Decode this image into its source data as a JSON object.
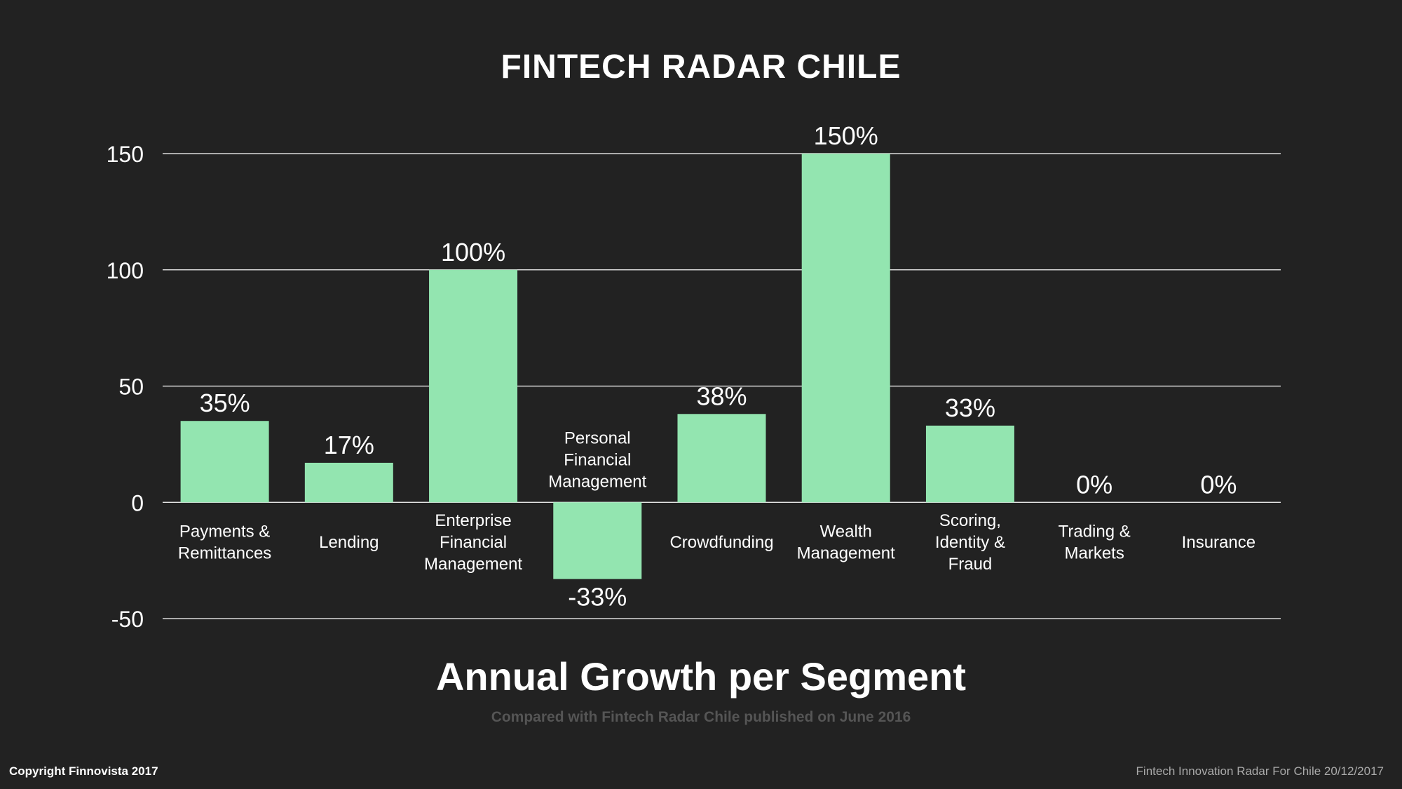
{
  "header": {
    "title": "FINTECH RADAR CHILE"
  },
  "chart_data": {
    "type": "bar",
    "title": "FINTECH RADAR CHILE",
    "subtitle": "Annual Growth per Segment",
    "caption": "Compared with Fintech Radar Chile published on June  2016",
    "ylim": [
      -50,
      150
    ],
    "yticks": [
      "150",
      "100",
      "50",
      "0",
      "-50"
    ],
    "ytick_values": [
      150,
      100,
      50,
      0,
      -50
    ],
    "grid": true,
    "bar_color": "#93e5b0",
    "categories": [
      [
        "Payments &",
        "Remittances"
      ],
      [
        "Lending"
      ],
      [
        "Enterprise",
        "Financial",
        "Management"
      ],
      [
        "Personal",
        "Financial",
        "Management"
      ],
      [
        "Crowdfunding"
      ],
      [
        "Wealth",
        "Management"
      ],
      [
        "Scoring,",
        "Identity &",
        "Fraud"
      ],
      [
        "Trading &",
        "Markets"
      ],
      [
        "Insurance"
      ]
    ],
    "values": [
      35,
      17,
      100,
      -33,
      38,
      150,
      33,
      0,
      0
    ],
    "data_labels": [
      "35%",
      "17%",
      "100%",
      "-33%",
      "38%",
      "150%",
      "33%",
      "0%",
      "0%"
    ]
  },
  "footer": {
    "copyright": "Copyright Finnovista 2017",
    "source": "Fintech Innovation Radar For Chile 20/12/2017"
  }
}
